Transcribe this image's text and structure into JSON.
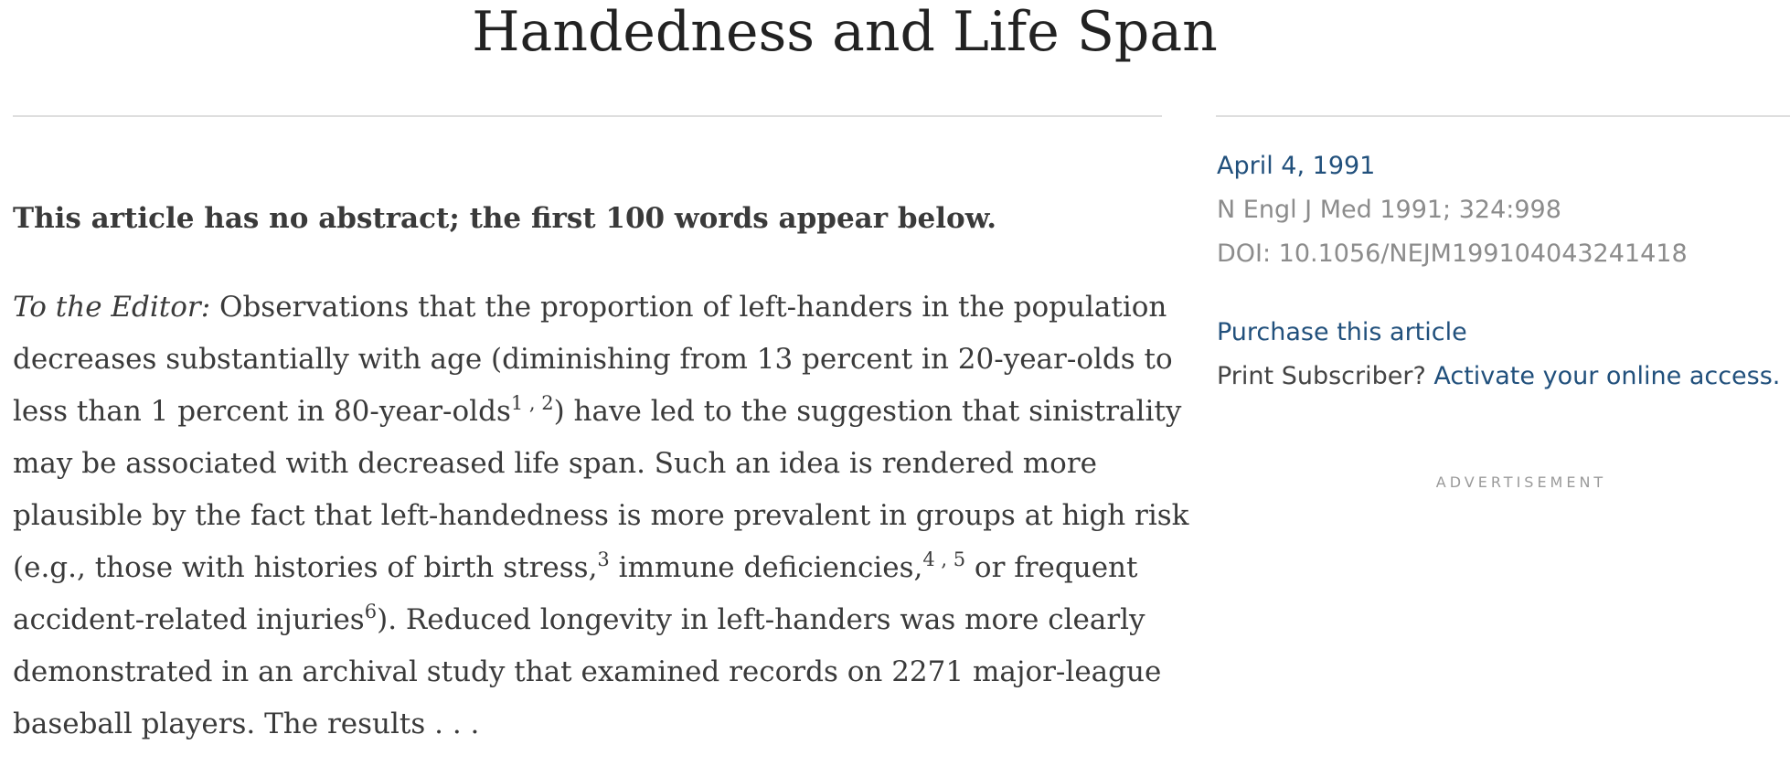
{
  "article": {
    "title": "Handedness and Life Span",
    "no_abstract_note": "This article has no abstract; the first 100 words appear below.",
    "excerpt": {
      "lead": "To the Editor:",
      "l1": " Observations that the proportion of left-handers in the population",
      "l2": "decreases substantially with age (diminishing from 13 percent in 20-year-olds to",
      "l3a": "less than 1 percent in 80-year-olds",
      "ref1": "1 , 2",
      "l3b": ") have led to the suggestion that sinistrality",
      "l4": "may be associated with decreased life span. Such an idea is rendered more",
      "l5": "plausible by the fact that left-handedness is more prevalent in groups at high risk",
      "l6a": "(e.g., those with histories of birth stress,",
      "ref3": "3",
      "l6b": " immune deficiencies,",
      "ref45": "4 , 5",
      "l6c": " or frequent",
      "l7a": "accident-related injuries",
      "ref6": "6",
      "l7b": "). Reduced longevity in left-handers was more clearly",
      "l8": "demonstrated in an archival study that examined records on 2271 major-league",
      "l9": "baseball players. The results . . ."
    }
  },
  "sidebar": {
    "date": "April 4, 1991",
    "citation": "N Engl J Med 1991; 324:998",
    "doi": "DOI: 10.1056/NEJM199104043241418",
    "purchase_link": "Purchase this article",
    "subscriber_prompt": "Print Subscriber? ",
    "activate_link": "Activate your online access.",
    "advertisement_label": "ADVERTISEMENT"
  },
  "colors": {
    "link": "#21507c",
    "meta": "#8c8c8c",
    "text": "#3a3a3a",
    "rule": "#dedede"
  }
}
